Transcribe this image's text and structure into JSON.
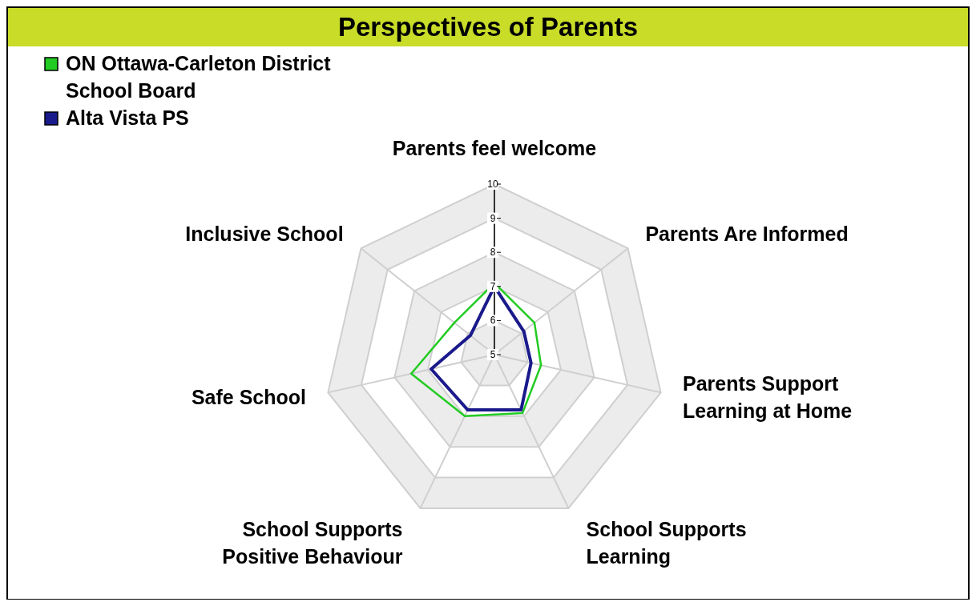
{
  "chart_data": {
    "type": "radar",
    "title": "Perspectives of Parents",
    "categories": [
      "Parents feel welcome",
      "Parents Are Informed",
      "Parents Support Learning at Home",
      "School Supports Learning",
      "School Supports Positive Behaviour",
      "Safe School",
      "Inclusive School"
    ],
    "series": [
      {
        "name": "ON Ottawa-Carleton District School Board",
        "color": "#22cc22",
        "values": [
          7.1,
          6.5,
          6.4,
          6.9,
          7.0,
          7.5,
          6.5
        ]
      },
      {
        "name": "Alta Vista PS",
        "color": "#1a1a8c",
        "values": [
          7.0,
          6.1,
          6.1,
          6.8,
          6.8,
          6.9,
          5.9
        ]
      }
    ],
    "ylim": [
      5,
      10
    ],
    "yticks": [
      5,
      6,
      7,
      8,
      9,
      10
    ],
    "legend": "top left"
  }
}
